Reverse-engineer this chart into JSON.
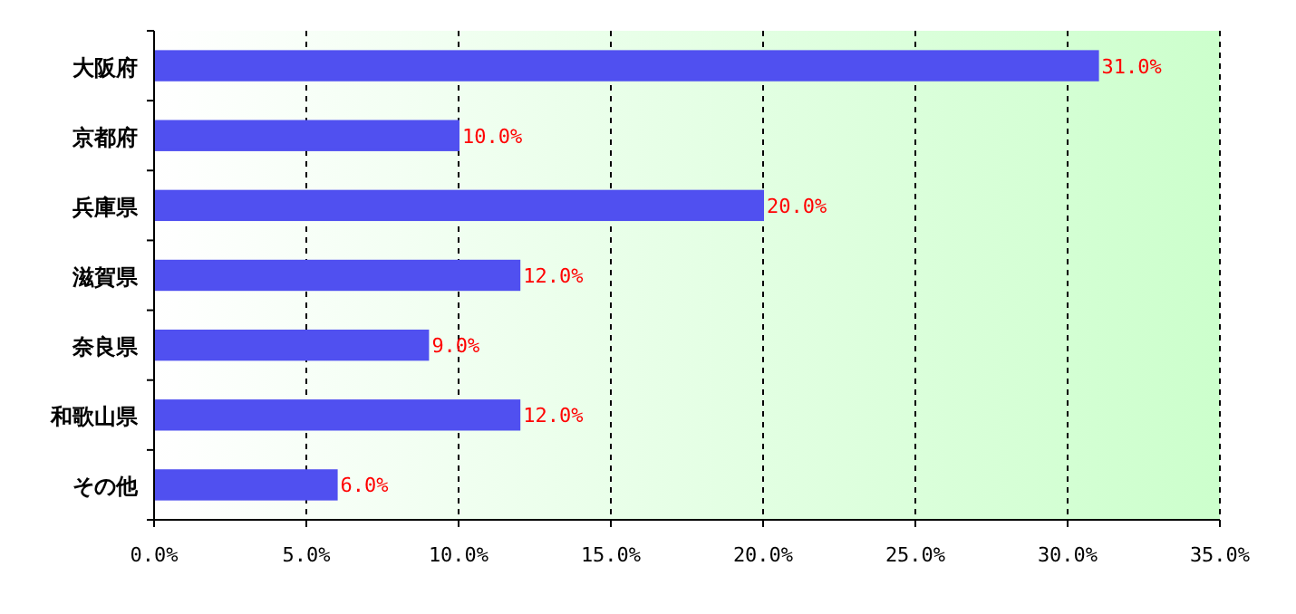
{
  "chart_data": {
    "type": "bar",
    "orientation": "horizontal",
    "categories": [
      "大阪府",
      "京都府",
      "兵庫県",
      "滋賀県",
      "奈良県",
      "和歌山県",
      "その他"
    ],
    "values": [
      31,
      10,
      20,
      12,
      9,
      12,
      6
    ],
    "value_labels": [
      "31.0%",
      "10.0%",
      "20.0%",
      "12.0%",
      "9.0%",
      "12.0%",
      "6.0%"
    ],
    "color": "#5050f0",
    "xlim": [
      0,
      35
    ],
    "xticks": [
      {
        "value": 0,
        "label": "0.0%"
      },
      {
        "value": 5,
        "label": "5.0%"
      },
      {
        "value": 10,
        "label": "10.0%"
      },
      {
        "value": 15,
        "label": "15.0%"
      },
      {
        "value": 20,
        "label": "20.0%"
      },
      {
        "value": 25,
        "label": "25.0%"
      },
      {
        "value": 30,
        "label": "30.0%"
      },
      {
        "value": 35,
        "label": "35.0%"
      }
    ],
    "grid": "x"
  }
}
